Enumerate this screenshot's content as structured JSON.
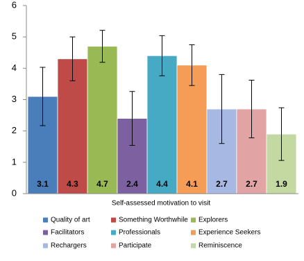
{
  "chart_data": {
    "type": "bar",
    "x_label": "Self-assessed motivation to visit",
    "ylim": [
      0,
      6
    ],
    "yticks": [
      0,
      1,
      2,
      3,
      4,
      5,
      6
    ],
    "grid": false,
    "series": [
      {
        "name": "Quality of art",
        "color": "#4a7ebb",
        "values": [
          3.1
        ],
        "errors": [
          0.93
        ]
      },
      {
        "name": "Something Worthwhile",
        "color": "#be4b48",
        "values": [
          4.3
        ],
        "errors": [
          0.7
        ]
      },
      {
        "name": "Explorers",
        "color": "#98b954",
        "values": [
          4.7
        ],
        "errors": [
          0.51
        ]
      },
      {
        "name": "Facilitators",
        "color": "#7d60a0",
        "values": [
          2.4
        ],
        "errors": [
          0.86
        ]
      },
      {
        "name": "Professionals",
        "color": "#46aac5",
        "values": [
          4.4
        ],
        "errors": [
          0.64
        ]
      },
      {
        "name": "Experience Seekers",
        "color": "#f59d56",
        "values": [
          4.1
        ],
        "errors": [
          0.65
        ]
      },
      {
        "name": "Rechargers",
        "color": "#a7b9e3",
        "values": [
          2.7
        ],
        "errors": [
          1.1
        ]
      },
      {
        "name": "Participate",
        "color": "#e1a3a4",
        "values": [
          2.7
        ],
        "errors": [
          0.92
        ]
      },
      {
        "name": "Reminiscence",
        "color": "#c4d9a1",
        "values": [
          1.9
        ],
        "errors": [
          0.84
        ]
      }
    ]
  }
}
